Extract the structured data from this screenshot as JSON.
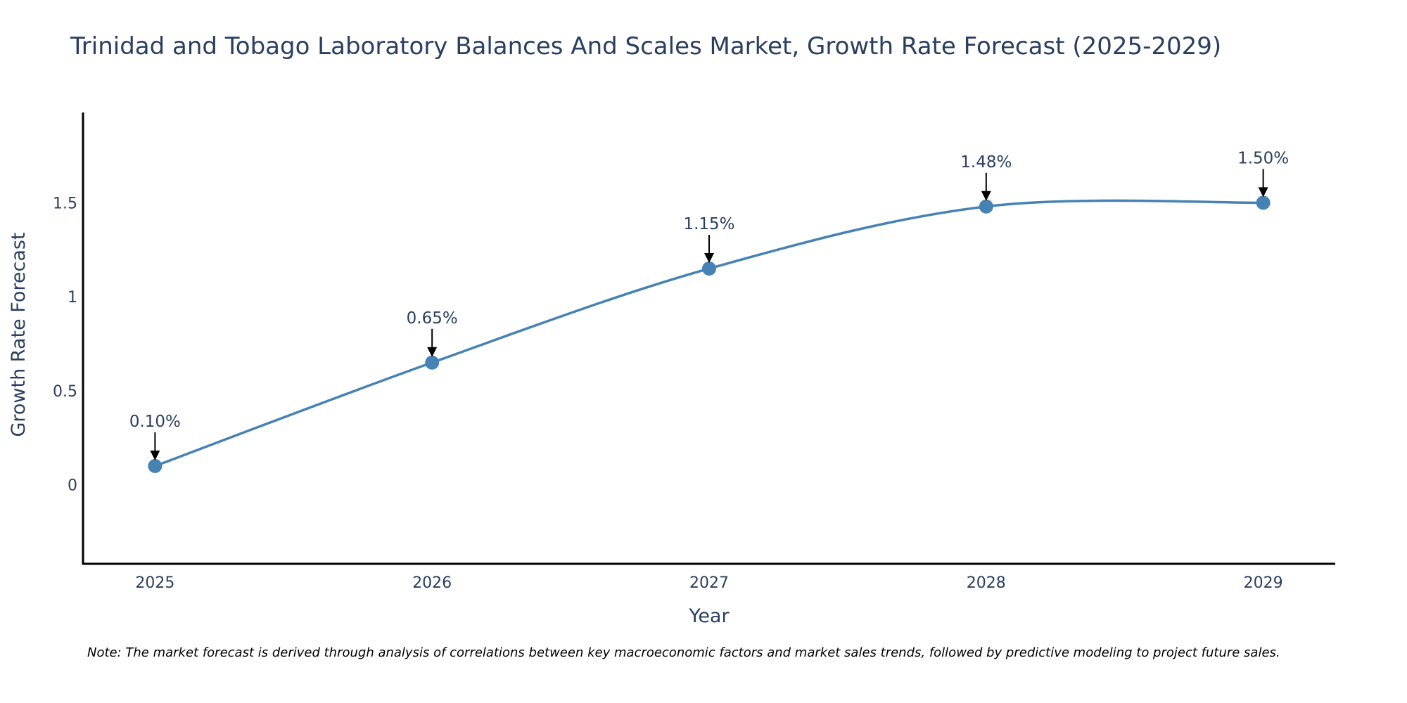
{
  "chart_data": {
    "type": "line",
    "title": "Trinidad and Tobago Laboratory Balances And Scales Market, Growth Rate Forecast (2025-2029)",
    "xlabel": "Year",
    "ylabel": "Growth Rate Forecast",
    "categories": [
      "2025",
      "2026",
      "2027",
      "2028",
      "2029"
    ],
    "x": [
      2025,
      2026,
      2027,
      2028,
      2029
    ],
    "values": [
      0.1,
      0.65,
      1.15,
      1.48,
      1.5
    ],
    "data_labels": [
      "0.10%",
      "0.65%",
      "1.15%",
      "1.48%",
      "1.50%"
    ],
    "xlim": [
      2024.74,
      2029.26
    ],
    "ylim": [
      -0.42,
      1.98
    ],
    "yticks": [
      0,
      0.5,
      1,
      1.5
    ],
    "ytick_labels": [
      "0",
      "0.5",
      "1",
      "1.5"
    ],
    "line_shape": "spline",
    "grid": false,
    "legend": "none",
    "line_color": "#4682b4",
    "marker_color": "#4682b4",
    "arrow_color": "#000000"
  },
  "note": "Note: The market forecast is derived through analysis of correlations between key macroeconomic factors and market sales trends, followed by predictive modeling to project future sales."
}
